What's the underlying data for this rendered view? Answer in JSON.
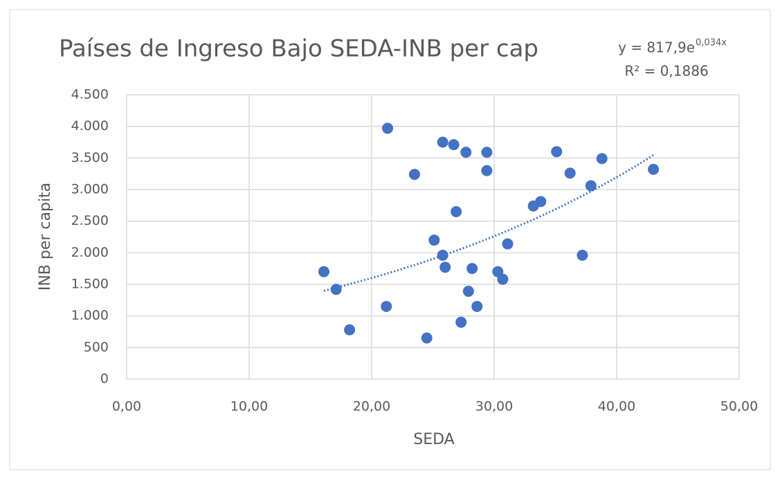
{
  "chart_data": {
    "type": "scatter",
    "title": "Países de Ingreso Bajo SEDA-INB per cap",
    "x_label": "SEDA",
    "y_label": "INB per capita",
    "trendline": {
      "equation": "y = 817,9e",
      "exponent": "0,034x",
      "r2": "R² = 0,1886"
    },
    "series": [
      {
        "name": "INB per capita",
        "color": "#4472c4",
        "x": [
          16.1,
          17.1,
          18.2,
          21.2,
          21.3,
          23.5,
          24.5,
          25.1,
          25.8,
          25.8,
          26.0,
          26.7,
          26.9,
          27.3,
          27.7,
          27.9,
          28.2,
          28.6,
          29.4,
          29.4,
          30.3,
          30.7,
          31.1,
          33.2,
          33.8,
          35.1,
          36.2,
          37.2,
          37.9,
          38.8,
          43.0
        ],
        "values": [
          1700,
          1420,
          780,
          1150,
          3970,
          3240,
          650,
          2200,
          3750,
          1960,
          1770,
          3710,
          2650,
          900,
          3590,
          1390,
          1750,
          1150,
          3590,
          3300,
          1700,
          1580,
          2140,
          2740,
          2810,
          3600,
          3260,
          1960,
          3060,
          3490,
          3320
        ]
      }
    ],
    "xlim": [
      0,
      50
    ],
    "xticks": [
      {
        "value": 0,
        "label": "0,00"
      },
      {
        "value": 10,
        "label": "10,00"
      },
      {
        "value": 20,
        "label": "20,00"
      },
      {
        "value": 30,
        "label": "30,00"
      },
      {
        "value": 40,
        "label": "40,00"
      },
      {
        "value": 50,
        "label": "50,00"
      }
    ],
    "ylim": [
      0,
      4500
    ],
    "yticks": [
      0,
      500,
      {
        "value": 1000,
        "label": "1.000"
      },
      {
        "value": 1500,
        "label": "1.500"
      },
      {
        "value": 2000,
        "label": "2.000"
      },
      {
        "value": 2500,
        "label": "2.500"
      },
      {
        "value": 3000,
        "label": "3.000"
      },
      {
        "value": 3500,
        "label": "3.500"
      },
      {
        "value": 4000,
        "label": "4.000"
      },
      {
        "value": 4500,
        "label": "4.500"
      }
    ],
    "grid": true
  }
}
